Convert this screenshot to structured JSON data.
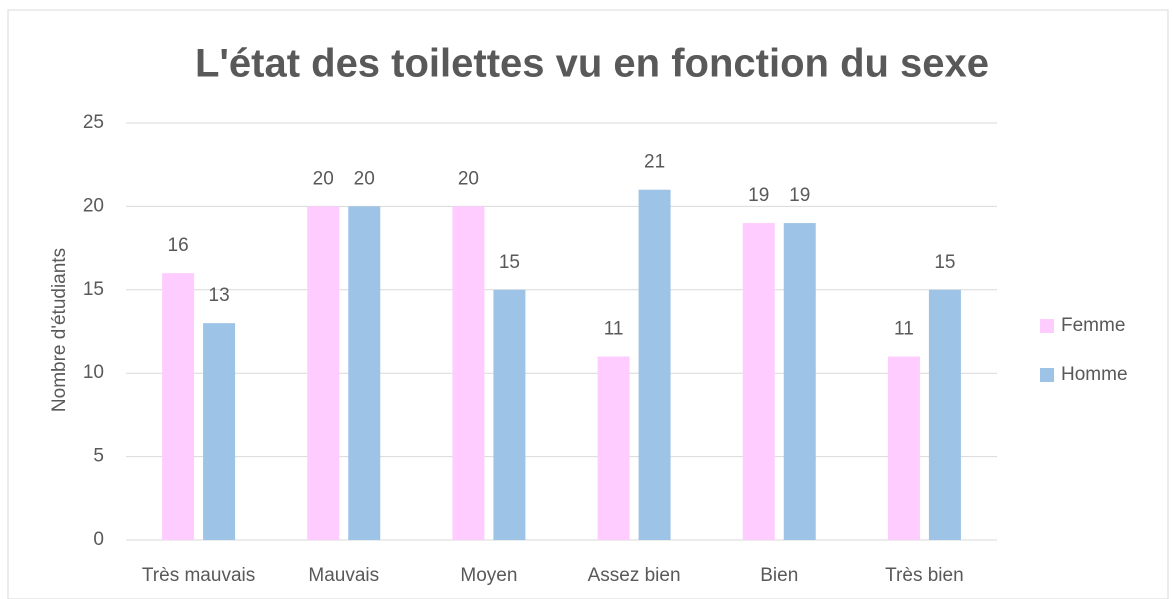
{
  "chart_data": {
    "type": "bar",
    "title": "L'état des toilettes vu en fonction du sexe",
    "y_label": "Nombre d'étudiants",
    "categories": [
      "Très mauvais",
      "Mauvais",
      "Moyen",
      "Assez bien",
      "Bien",
      "Très bien"
    ],
    "series": [
      {
        "name": "Femme",
        "color": "#ffccff",
        "values": [
          16,
          20,
          20,
          11,
          19,
          11
        ]
      },
      {
        "name": "Homme",
        "color": "#9dc3e6",
        "values": [
          13,
          20,
          15,
          21,
          19,
          15
        ]
      }
    ],
    "ylim": [
      0,
      25
    ],
    "yticks": [
      0,
      5,
      10,
      15,
      20,
      25
    ],
    "grid": true,
    "legend": "right"
  }
}
